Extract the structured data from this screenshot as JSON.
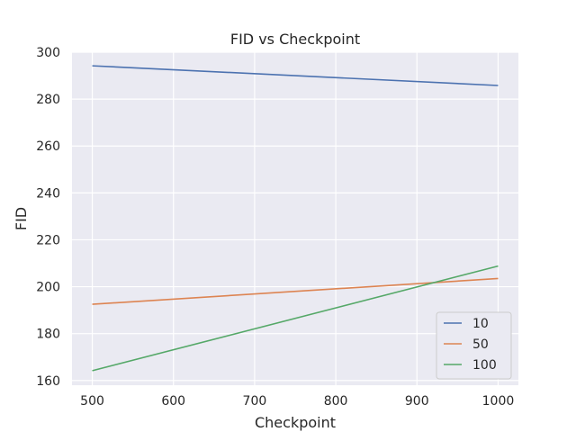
{
  "chart_data": {
    "type": "line",
    "title": "FID vs Checkpoint",
    "xlabel": "Checkpoint",
    "ylabel": "FID",
    "x": [
      500,
      1000
    ],
    "xlim": [
      475,
      1025
    ],
    "ylim": [
      158,
      300
    ],
    "xticks": [
      500,
      600,
      700,
      800,
      900,
      1000
    ],
    "yticks": [
      160,
      180,
      200,
      220,
      240,
      260,
      280,
      300
    ],
    "xtick_labels": [
      "500",
      "600",
      "700",
      "800",
      "900",
      "1000"
    ],
    "ytick_labels": [
      "160",
      "180",
      "200",
      "220",
      "240",
      "260",
      "280",
      "300"
    ],
    "grid": true,
    "background": "#eaeaf2",
    "legend_position": "lower-right",
    "series": [
      {
        "name": "10",
        "color": "#4c72b0",
        "values": [
          294.2,
          285.8
        ]
      },
      {
        "name": "50",
        "color": "#dd8452",
        "values": [
          192.5,
          203.5
        ]
      },
      {
        "name": "100",
        "color": "#55a868",
        "values": [
          164.2,
          208.8
        ]
      }
    ]
  }
}
